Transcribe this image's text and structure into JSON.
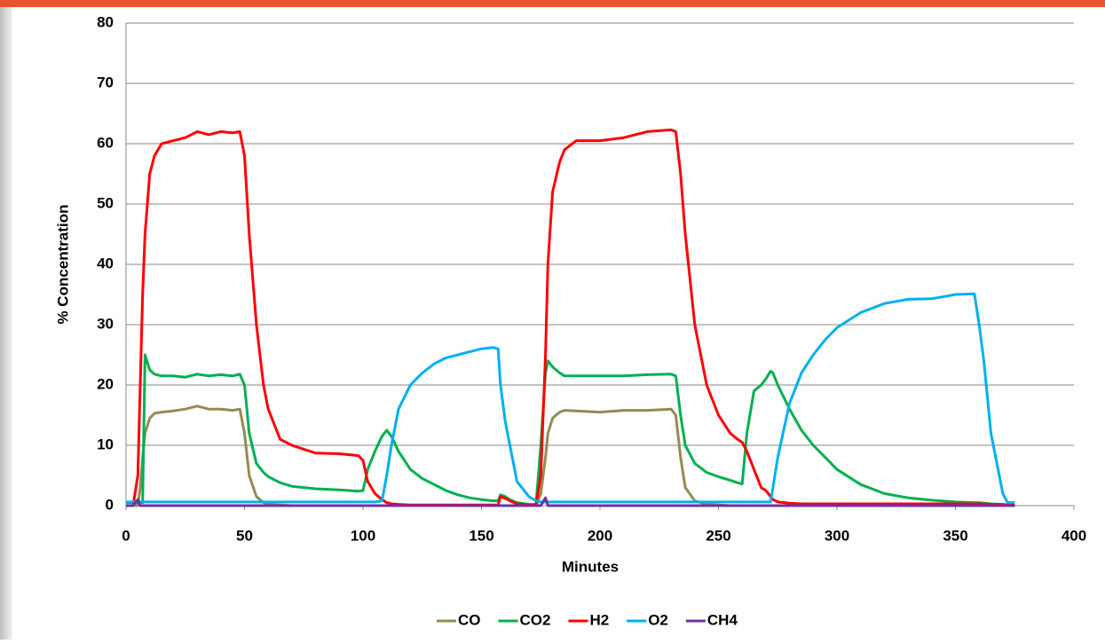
{
  "chart_data": {
    "type": "line",
    "xlabel": "Minutes",
    "ylabel": "% Concentration",
    "x": [
      0,
      3,
      5,
      6,
      7,
      8,
      10,
      12,
      15,
      20,
      25,
      30,
      35,
      40,
      45,
      48,
      50,
      52,
      55,
      58,
      60,
      65,
      70,
      80,
      90,
      98,
      100,
      102,
      105,
      108,
      110,
      112,
      115,
      120,
      125,
      130,
      135,
      140,
      145,
      150,
      155,
      157,
      158,
      160,
      162,
      165,
      170,
      173,
      175,
      177,
      178,
      180,
      183,
      185,
      190,
      200,
      210,
      220,
      230,
      232,
      234,
      236,
      240,
      245,
      250,
      255,
      258,
      260,
      262,
      265,
      268,
      270,
      272,
      273,
      275,
      280,
      285,
      290,
      295,
      300,
      310,
      320,
      330,
      340,
      350,
      358,
      360,
      362,
      365,
      370,
      372,
      375
    ],
    "series": [
      {
        "name": "CO",
        "color": "#948a54",
        "values": [
          0,
          0,
          0,
          3,
          8,
          12,
          14.5,
          15.3,
          15.5,
          15.7,
          16,
          16.5,
          16,
          16,
          15.8,
          16,
          12,
          5,
          1.5,
          0.5,
          0.2,
          0.1,
          0,
          0,
          0,
          0,
          0,
          0,
          0,
          0,
          0,
          0,
          0,
          0,
          0,
          0,
          0,
          0,
          0,
          0,
          0,
          0,
          0,
          0,
          0,
          0,
          0,
          0,
          2,
          8,
          12,
          14.5,
          15.5,
          15.8,
          15.7,
          15.5,
          15.8,
          15.8,
          16,
          15,
          8,
          3,
          0.8,
          0.2,
          0.1,
          0,
          0,
          0,
          0,
          0,
          0,
          0,
          0,
          0,
          0,
          0,
          0,
          0,
          0,
          0,
          0,
          0,
          0,
          0,
          0,
          0,
          0,
          0,
          0,
          0,
          0,
          0
        ]
      },
      {
        "name": "CO2",
        "color": "#00b050",
        "values": [
          0.5,
          0.5,
          0.5,
          0.5,
          0.5,
          25,
          22.5,
          21.8,
          21.5,
          21.5,
          21.3,
          21.8,
          21.5,
          21.7,
          21.5,
          21.8,
          20,
          12,
          7,
          5.5,
          4.8,
          3.8,
          3.2,
          2.8,
          2.6,
          2.4,
          2.5,
          6,
          9,
          11.5,
          12.5,
          11.5,
          9,
          6,
          4.5,
          3.5,
          2.5,
          1.8,
          1.3,
          1,
          0.8,
          0.8,
          1.8,
          1.5,
          1,
          0.5,
          0.2,
          0.2,
          10,
          22,
          24,
          23,
          22,
          21.5,
          21.5,
          21.5,
          21.5,
          21.7,
          21.8,
          21.5,
          15,
          10,
          7,
          5.5,
          4.8,
          4.2,
          3.8,
          3.6,
          12,
          19,
          20,
          21,
          22.3,
          22,
          20,
          16,
          12.5,
          10,
          8,
          6,
          3.5,
          2,
          1.3,
          0.9,
          0.6,
          0.5,
          0.5,
          0.4,
          0.3,
          0.2,
          0.1,
          0.1
        ]
      },
      {
        "name": "H2",
        "color": "#ff0000",
        "values": [
          0,
          0,
          5,
          20,
          35,
          45,
          55,
          58,
          60,
          60.5,
          61,
          62,
          61.5,
          62,
          61.8,
          62,
          58,
          45,
          30,
          20,
          16,
          11,
          10,
          8.7,
          8.6,
          8.3,
          7.5,
          4,
          2,
          1,
          0.5,
          0.3,
          0.2,
          0.1,
          0.1,
          0.1,
          0.1,
          0.1,
          0.1,
          0.1,
          0.1,
          0.1,
          1.5,
          1.2,
          0.8,
          0.3,
          0.1,
          0.1,
          5,
          25,
          40,
          52,
          57,
          59,
          60.5,
          60.5,
          61,
          62,
          62.3,
          62,
          55,
          45,
          30,
          20,
          15,
          12,
          11,
          10.5,
          9,
          6,
          3,
          2.5,
          1.5,
          1,
          0.6,
          0.4,
          0.3,
          0.3,
          0.3,
          0.3,
          0.3,
          0.3,
          0.3,
          0.3,
          0.3,
          0.3,
          0.3,
          0.3,
          0.2,
          0.2,
          0.1,
          0.1
        ]
      },
      {
        "name": "O2",
        "color": "#00b0f0",
        "values": [
          0.6,
          0.6,
          0.6,
          0.6,
          0.6,
          0.6,
          0.6,
          0.6,
          0.6,
          0.6,
          0.6,
          0.6,
          0.6,
          0.6,
          0.6,
          0.6,
          0.6,
          0.6,
          0.6,
          0.6,
          0.6,
          0.6,
          0.6,
          0.6,
          0.6,
          0.6,
          0.6,
          0.6,
          0.6,
          0.8,
          5,
          10,
          16,
          20,
          22,
          23.5,
          24.5,
          25,
          25.5,
          26,
          26.2,
          26,
          20,
          14,
          10,
          4,
          1.5,
          0.8,
          0.6,
          0.6,
          0.6,
          0.6,
          0.6,
          0.6,
          0.6,
          0.6,
          0.6,
          0.6,
          0.6,
          0.6,
          0.6,
          0.6,
          0.6,
          0.6,
          0.6,
          0.6,
          0.6,
          0.6,
          0.6,
          0.6,
          0.6,
          0.6,
          0.6,
          3,
          8,
          17,
          22,
          25,
          27.5,
          29.5,
          32,
          33.5,
          34.2,
          34.3,
          35,
          35.1,
          30,
          24,
          12,
          2,
          0.5,
          0.5
        ]
      },
      {
        "name": "CH4",
        "color": "#7030a0",
        "values": [
          0,
          0,
          1,
          0,
          0,
          0,
          0,
          0,
          0,
          0,
          0,
          0,
          0,
          0,
          0,
          0,
          0,
          0,
          0,
          0,
          0,
          0,
          0,
          0,
          0,
          0,
          0,
          0,
          0,
          0,
          0,
          0,
          0,
          0,
          0,
          0,
          0,
          0,
          0,
          0,
          0,
          0,
          0,
          0,
          0,
          0,
          0,
          0,
          0,
          1.3,
          0,
          0,
          0,
          0,
          0,
          0,
          0,
          0,
          0,
          0,
          0,
          0,
          0,
          0,
          0,
          0,
          0,
          0,
          0,
          0,
          0,
          0,
          0,
          0,
          0,
          0,
          0,
          0,
          0,
          0,
          0,
          0,
          0,
          0,
          0,
          0,
          0,
          0,
          0,
          0,
          0,
          0
        ]
      }
    ],
    "xlim": [
      0,
      400
    ],
    "xticks": [
      0,
      50,
      100,
      150,
      200,
      250,
      300,
      350,
      400
    ],
    "ylim": [
      0,
      80
    ],
    "yticks": [
      0,
      10,
      20,
      30,
      40,
      50,
      60,
      70,
      80
    ],
    "grid": true,
    "legend": "bottom"
  }
}
